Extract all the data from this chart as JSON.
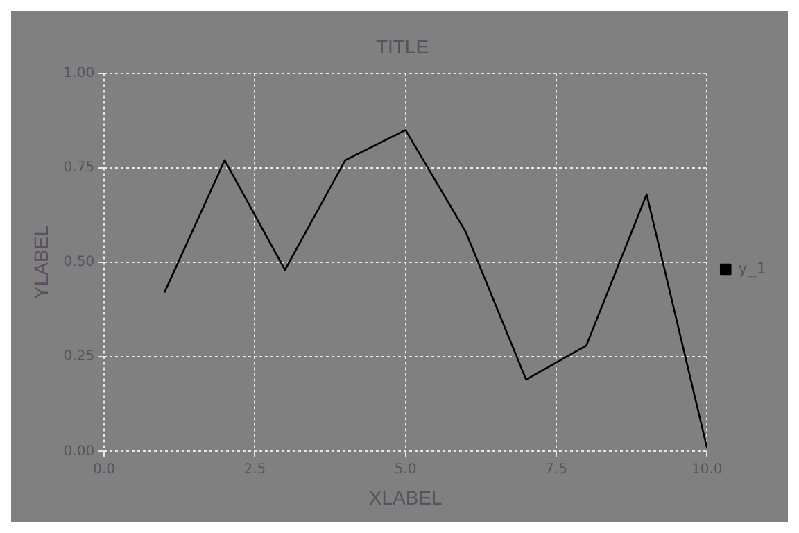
{
  "chart_data": {
    "type": "line",
    "title": "TITLE",
    "xlabel": "XLABEL",
    "ylabel": "YLABEL",
    "x": [
      1,
      2,
      3,
      4,
      5,
      6,
      7,
      8,
      9,
      10
    ],
    "series": [
      {
        "name": "y_1",
        "color": "#000000",
        "values": [
          0.42,
          0.77,
          0.48,
          0.77,
          0.85,
          0.58,
          0.19,
          0.28,
          0.68,
          0.01
        ]
      }
    ],
    "xlim": [
      0,
      10
    ],
    "xticks": [
      {
        "value": 0,
        "label": "0.0"
      },
      {
        "value": 2.5,
        "label": "2.5"
      },
      {
        "value": 5,
        "label": "5.0"
      },
      {
        "value": 7.5,
        "label": "7.5"
      },
      {
        "value": 10,
        "label": "10.0"
      }
    ],
    "ylim": [
      0,
      1
    ],
    "yticks": [
      {
        "value": 0,
        "label": "0.00"
      },
      {
        "value": 0.25,
        "label": "0.25"
      },
      {
        "value": 0.5,
        "label": "0.50"
      },
      {
        "value": 0.75,
        "label": "0.75"
      },
      {
        "value": 1,
        "label": "1.00"
      }
    ],
    "grid": true,
    "legend": "right",
    "marker": "none",
    "line_style": "solid"
  }
}
